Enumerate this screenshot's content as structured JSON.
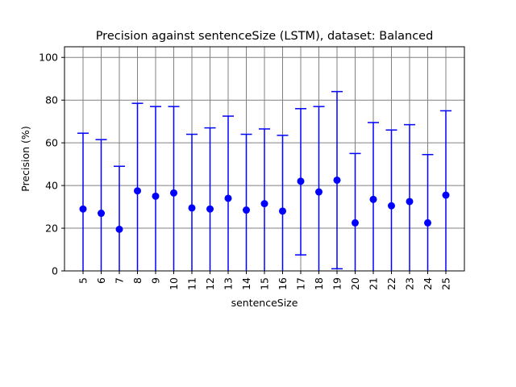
{
  "chart_data": {
    "type": "scatter",
    "title": "Precision against sentenceSize (LSTM), dataset: Balanced",
    "xlabel": "sentenceSize",
    "ylabel": "Precision (%)",
    "ylim": [
      0,
      105
    ],
    "yticks": [
      0,
      20,
      40,
      60,
      80,
      100
    ],
    "grid": true,
    "marker_color": "#0000ff",
    "grid_color": "#808080",
    "series": [
      {
        "x": [
          "5",
          "6",
          "7",
          "8",
          "9",
          "10",
          "11",
          "12",
          "13",
          "14",
          "15",
          "16",
          "17",
          "18",
          "19",
          "20",
          "21",
          "22",
          "23",
          "24",
          "25"
        ],
        "y": [
          29,
          27,
          19.5,
          37.5,
          35,
          36.5,
          29.5,
          29,
          34,
          28.5,
          31.5,
          28,
          42,
          37,
          42.5,
          22.5,
          33.5,
          30.5,
          32.5,
          22.5,
          35.5
        ],
        "err_low": [
          0,
          0,
          0,
          0,
          0,
          0,
          0,
          0,
          0,
          0,
          0,
          0,
          7.5,
          0,
          1,
          0,
          0,
          0,
          0,
          0,
          0
        ],
        "err_high": [
          64.5,
          61.5,
          49,
          78.5,
          77,
          77,
          64,
          67,
          72.5,
          64,
          66.5,
          63.5,
          76,
          77,
          84,
          55,
          69.5,
          66,
          68.5,
          54.5,
          75
        ]
      }
    ]
  }
}
